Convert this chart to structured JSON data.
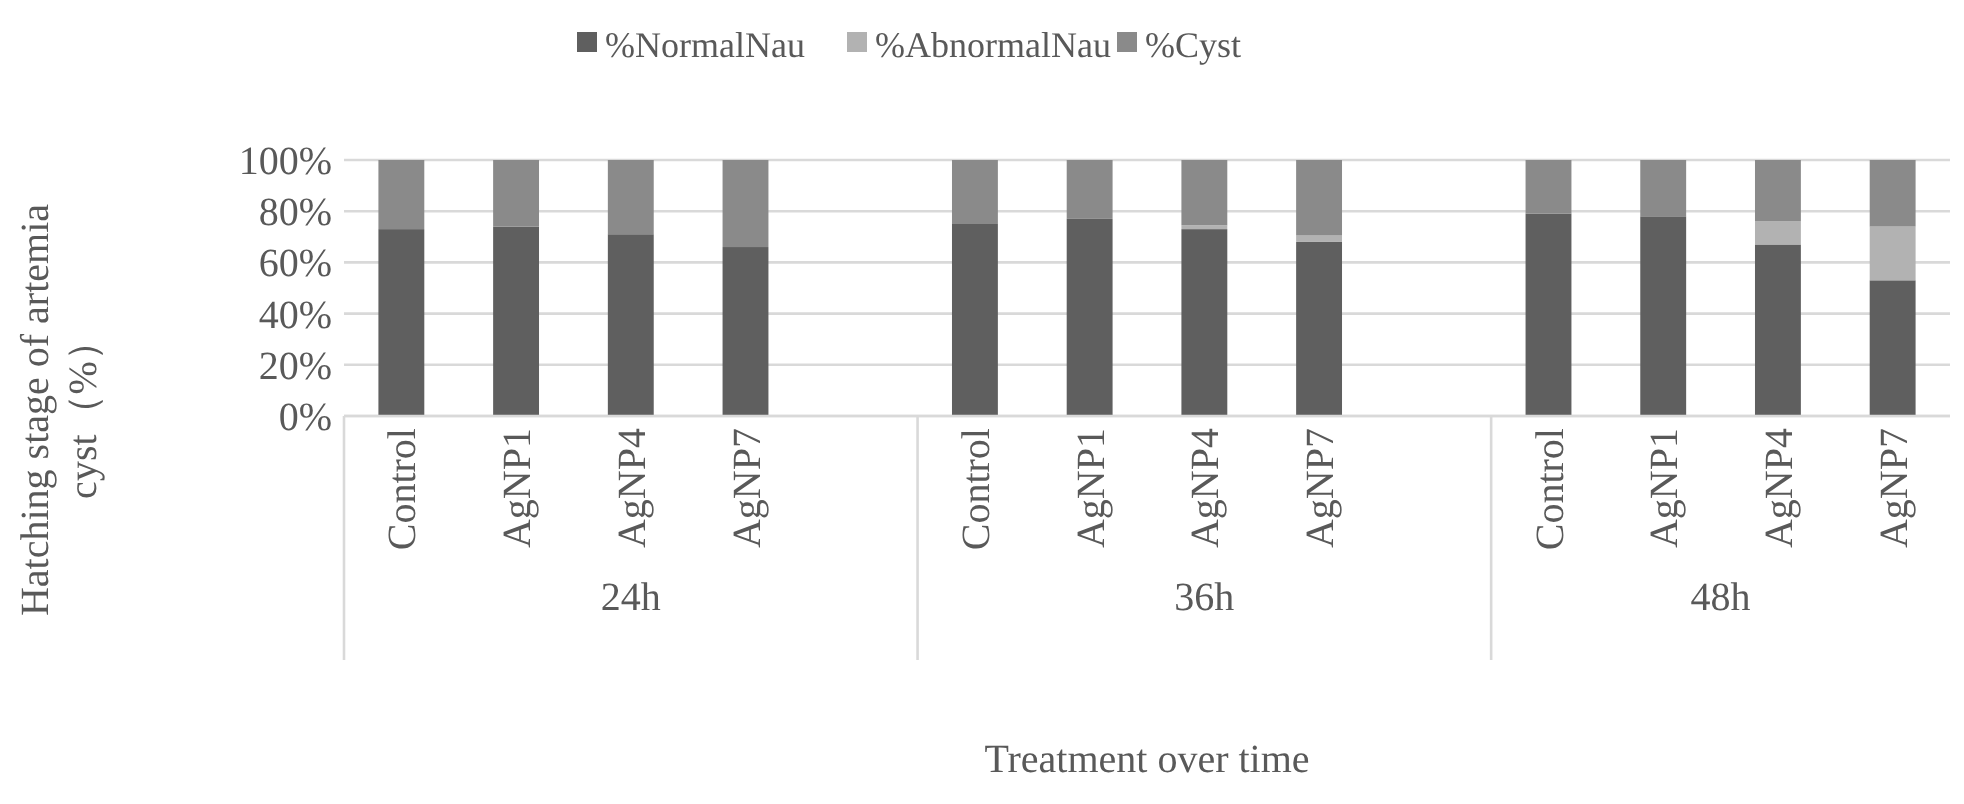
{
  "chart_data": {
    "type": "bar",
    "stacked": true,
    "xlabel": "Treatment over time",
    "ylabel": "Hatching stage of artemia cyst（%）",
    "categories": [
      "Control",
      "AgNP1",
      "AgNP4",
      "AgNP7",
      null,
      "Control",
      "AgNP1",
      "AgNP4",
      "AgNP7",
      null,
      "Control",
      "AgNP1",
      "AgNP4",
      "AgNP7"
    ],
    "series": [
      {
        "name": "%NormalNau",
        "color": "#5f5f5f",
        "values": [
          73,
          74,
          71,
          66,
          null,
          75,
          77,
          73,
          68,
          null,
          79,
          78,
          67,
          53
        ]
      },
      {
        "name": "%AbnormalNau",
        "color": "#b2b2b2",
        "values": [
          0,
          0,
          0,
          0,
          null,
          0,
          0,
          1.5,
          2.5,
          null,
          0,
          0,
          9,
          21
        ]
      },
      {
        "name": "%Cyst",
        "color": "#8a8a8a",
        "values": [
          27,
          26,
          29,
          34,
          null,
          25,
          23,
          25.5,
          29.5,
          null,
          21,
          22,
          24,
          26
        ]
      }
    ],
    "ylim": [
      0,
      100
    ],
    "yticks": [
      {
        "value": 0,
        "label": "0%"
      },
      {
        "value": 20,
        "label": "20%"
      },
      {
        "value": 40,
        "label": "40%"
      },
      {
        "value": 60,
        "label": "60%"
      },
      {
        "value": 80,
        "label": "80%"
      },
      {
        "value": 100,
        "label": "100%"
      }
    ],
    "grid": "y",
    "legend": "top",
    "annotations": [
      "24h",
      "36h",
      "48h"
    ]
  }
}
